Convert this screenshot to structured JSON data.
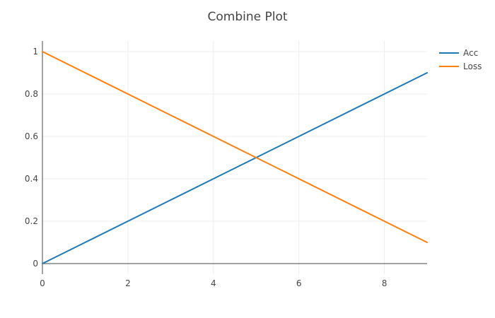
{
  "chart_data": {
    "type": "line",
    "title": "Combine Plot",
    "x_ticks": [
      "0",
      "2",
      "4",
      "6",
      "8"
    ],
    "y_ticks": [
      "0",
      "0.2",
      "0.4",
      "0.6",
      "0.8",
      "1"
    ],
    "xlim": [
      0,
      9
    ],
    "ylim": [
      -0.05,
      1.05
    ],
    "grid": true,
    "legend": "top-right",
    "series": [
      {
        "name": "Acc",
        "color": "#1f77b4",
        "x": [
          0,
          1,
          2,
          3,
          4,
          5,
          6,
          7,
          8,
          9
        ],
        "y": [
          0,
          0.1,
          0.2,
          0.3,
          0.4,
          0.5,
          0.6,
          0.7,
          0.8,
          0.9
        ]
      },
      {
        "name": "Loss",
        "color": "#ff7f0e",
        "x": [
          0,
          1,
          2,
          3,
          4,
          5,
          6,
          7,
          8,
          9
        ],
        "y": [
          1,
          0.9,
          0.8,
          0.7,
          0.6,
          0.5,
          0.4,
          0.3,
          0.2,
          0.1
        ]
      }
    ]
  }
}
